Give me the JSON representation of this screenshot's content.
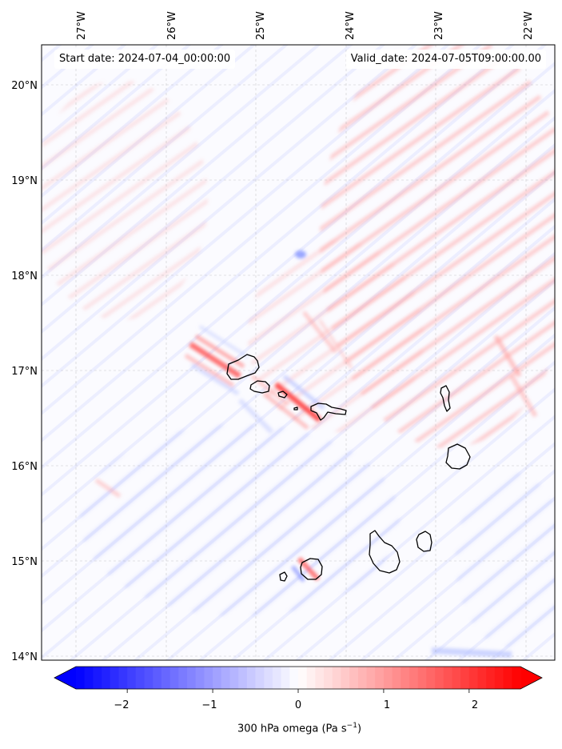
{
  "header": {
    "start_date": "Start date: 2024-07-04_00:00:00",
    "valid_date": "Valid_date: 2024-07-05T09:00:00.00"
  },
  "map": {
    "lon_labels": [
      "27°W",
      "26°W",
      "25°W",
      "24°W",
      "23°W",
      "22°W"
    ],
    "lat_labels": [
      "20°N",
      "19°N",
      "18°N",
      "17°N",
      "16°N",
      "15°N",
      "14°N"
    ],
    "gridlines": true,
    "field_colors": {
      "negative": "#0000ff",
      "neutral": "#ffffff",
      "positive": "#ff0000"
    },
    "coastline_color": "#000000"
  },
  "colorbar": {
    "tick_labels": [
      "−2",
      "−1",
      "0",
      "1",
      "2"
    ],
    "range": [
      -2.6,
      2.6
    ],
    "title": "300 hPa omega (Pa s",
    "title_sup": "−1",
    "title_end": ")"
  }
}
